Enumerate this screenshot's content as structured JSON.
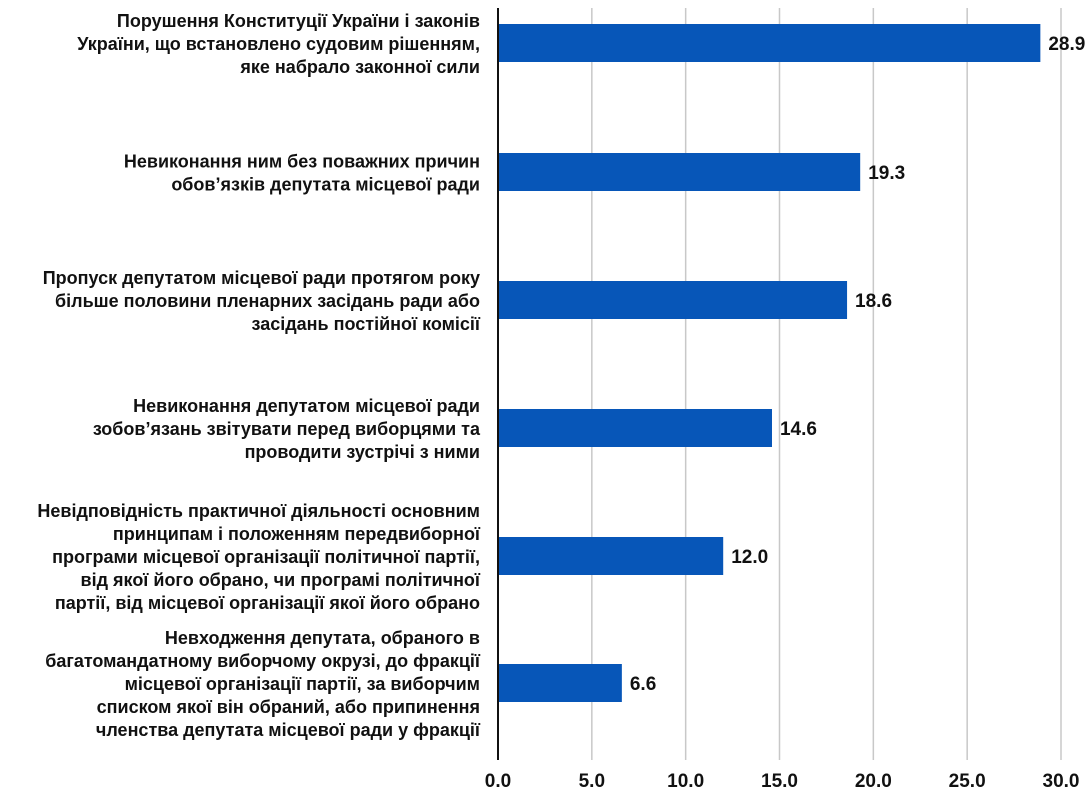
{
  "chart_data": {
    "type": "bar",
    "orientation": "horizontal",
    "categories": [
      [
        "Порушення Конституції України і законів",
        "України, що встановлено судовим рішенням,",
        "яке набрало законної сили"
      ],
      [
        "Невиконання ним без поважних причин",
        "обов’язків депутата місцевої ради"
      ],
      [
        "Пропуск депутатом місцевої ради протягом року",
        "більше половини пленарних засідань ради або",
        "засідань постійної комісії"
      ],
      [
        "Невиконання депутатом місцевої ради",
        "зобов’язань звітувати перед виборцями та",
        "проводити зустрічі з ними"
      ],
      [
        "Невідповідність практичної діяльності основним",
        "принципам і положенням передвиборної",
        "програми місцевої організації політичної партії,",
        "від якої його обрано, чи програмі політичної",
        "партії, від місцевої організації якої його обрано"
      ],
      [
        "Невходження депутата, обраного в",
        "багатомандатному виборчому окрузі, до фракції",
        "місцевої організації партії, за виборчим",
        "списком якої він обраний, або припинення",
        "членства депутата місцевої ради у фракції"
      ]
    ],
    "values": [
      28.9,
      19.3,
      18.6,
      14.6,
      12.0,
      6.6
    ],
    "value_labels": [
      "28.9",
      "19.3",
      "18.6",
      "14.6",
      "12.0",
      "6.6"
    ],
    "xlim": [
      0,
      30
    ],
    "xticks": [
      "0.0",
      "5.0",
      "10.0",
      "15.0",
      "20.0",
      "25.0",
      "30.0"
    ],
    "grid": "vertical",
    "title": "",
    "xlabel": "",
    "ylabel": "",
    "colors": {
      "bar": "#0756B8",
      "grid": "#C8C8C8",
      "axis": "#111111",
      "text": "#111111"
    }
  }
}
